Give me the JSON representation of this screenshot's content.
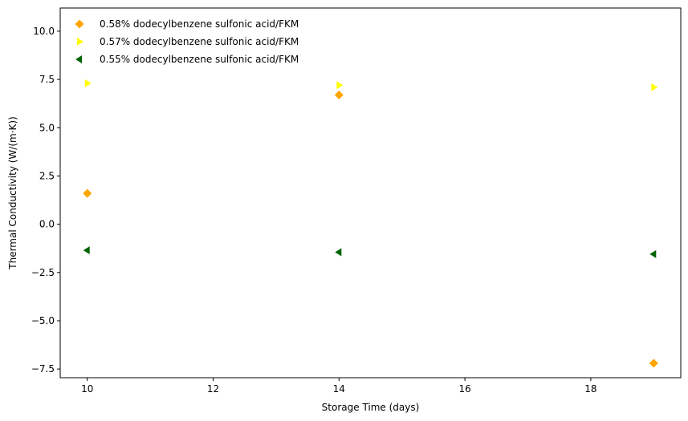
{
  "chart_data": {
    "type": "scatter",
    "title": "",
    "xlabel": "Storage Time (days)",
    "ylabel": "Thermal Conductivity (W/(m·K))",
    "xlim": [
      9.57,
      19.43
    ],
    "ylim": [
      -7.95,
      11.2
    ],
    "xticks": [
      10,
      12,
      14,
      16,
      18
    ],
    "yticks": [
      -7.5,
      -5.0,
      -2.5,
      0.0,
      2.5,
      5.0,
      7.5,
      10.0
    ],
    "grid": false,
    "legend_position": "top-left",
    "series": [
      {
        "name": "0.58% dodecylbenzene sulfonic acid/FKM",
        "marker": "diamond",
        "color": "#FFA500",
        "x": [
          10,
          14,
          19
        ],
        "y": [
          1.6,
          6.7,
          -7.2
        ]
      },
      {
        "name": "0.57% dodecylbenzene sulfonic acid/FKM",
        "marker": "triangle-right",
        "color": "#FFFF00",
        "x": [
          10,
          14,
          19
        ],
        "y": [
          7.3,
          7.2,
          7.1
        ]
      },
      {
        "name": "0.55% dodecylbenzene sulfonic acid/FKM",
        "marker": "triangle-left",
        "color": "#006400",
        "x": [
          10,
          14,
          19
        ],
        "y": [
          -1.35,
          -1.45,
          -1.55
        ]
      }
    ]
  }
}
